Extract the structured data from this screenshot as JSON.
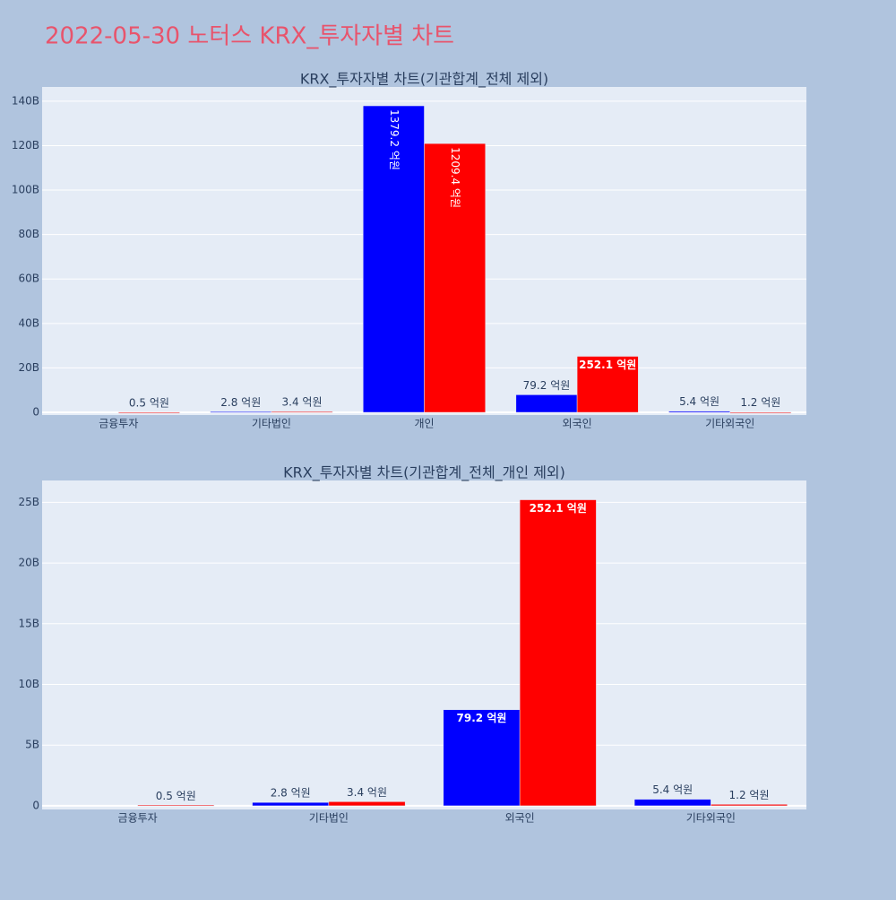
{
  "title": "2022-05-30 노터스 KRX_투자자별 차트",
  "chart_data": [
    {
      "type": "bar",
      "title": "KRX_투자자별 차트(기관합계_전체 제외)",
      "categories": [
        "금융투자",
        "기타법인",
        "개인",
        "외국인",
        "기타외국인"
      ],
      "series": [
        {
          "color": "#0000ff",
          "values": [
            null,
            0.28,
            137.92,
            7.92,
            0.54
          ],
          "value_labels": [
            null,
            "2.8 억원",
            "1379.2 억원",
            "79.2 억원",
            "5.4 억원"
          ]
        },
        {
          "color": "#ff0000",
          "values": [
            0.05,
            0.34,
            120.94,
            25.21,
            0.12
          ],
          "value_labels": [
            "0.5 억원",
            "3.4 억원",
            "1209.4 억원",
            "252.1 억원",
            "1.2 억원"
          ]
        }
      ],
      "ylim": [
        -1.2,
        146.4
      ],
      "yticks": [
        0,
        {
          "value": 20,
          "label": "20B"
        },
        {
          "value": 40,
          "label": "40B"
        },
        {
          "value": 60,
          "label": "60B"
        },
        {
          "value": 80,
          "label": "80B"
        },
        {
          "value": 100,
          "label": "100B"
        },
        {
          "value": 120,
          "label": "120B"
        },
        {
          "value": 140,
          "label": "140B"
        }
      ],
      "grid": true
    },
    {
      "type": "bar",
      "title": "KRX_투자자별 차트(기관합계_전체_개인 제외)",
      "categories": [
        "금융투자",
        "기타법인",
        "외국인",
        "기타외국인"
      ],
      "series": [
        {
          "color": "#0000ff",
          "values": [
            null,
            0.28,
            7.92,
            0.54
          ],
          "value_labels": [
            null,
            "2.8 억원",
            "79.2 억원",
            "5.4 억원"
          ]
        },
        {
          "color": "#ff0000",
          "values": [
            0.05,
            0.34,
            25.21,
            0.12
          ],
          "value_labels": [
            "0.5 억원",
            "3.4 억원",
            "252.1 억원",
            "1.2 억원"
          ]
        }
      ],
      "ylim": [
        -0.3,
        26.8
      ],
      "yticks": [
        0,
        {
          "value": 5,
          "label": "5B"
        },
        {
          "value": 10,
          "label": "10B"
        },
        {
          "value": 15,
          "label": "15B"
        },
        {
          "value": 20,
          "label": "20B"
        },
        {
          "value": 25,
          "label": "25B"
        }
      ],
      "grid": true
    }
  ]
}
